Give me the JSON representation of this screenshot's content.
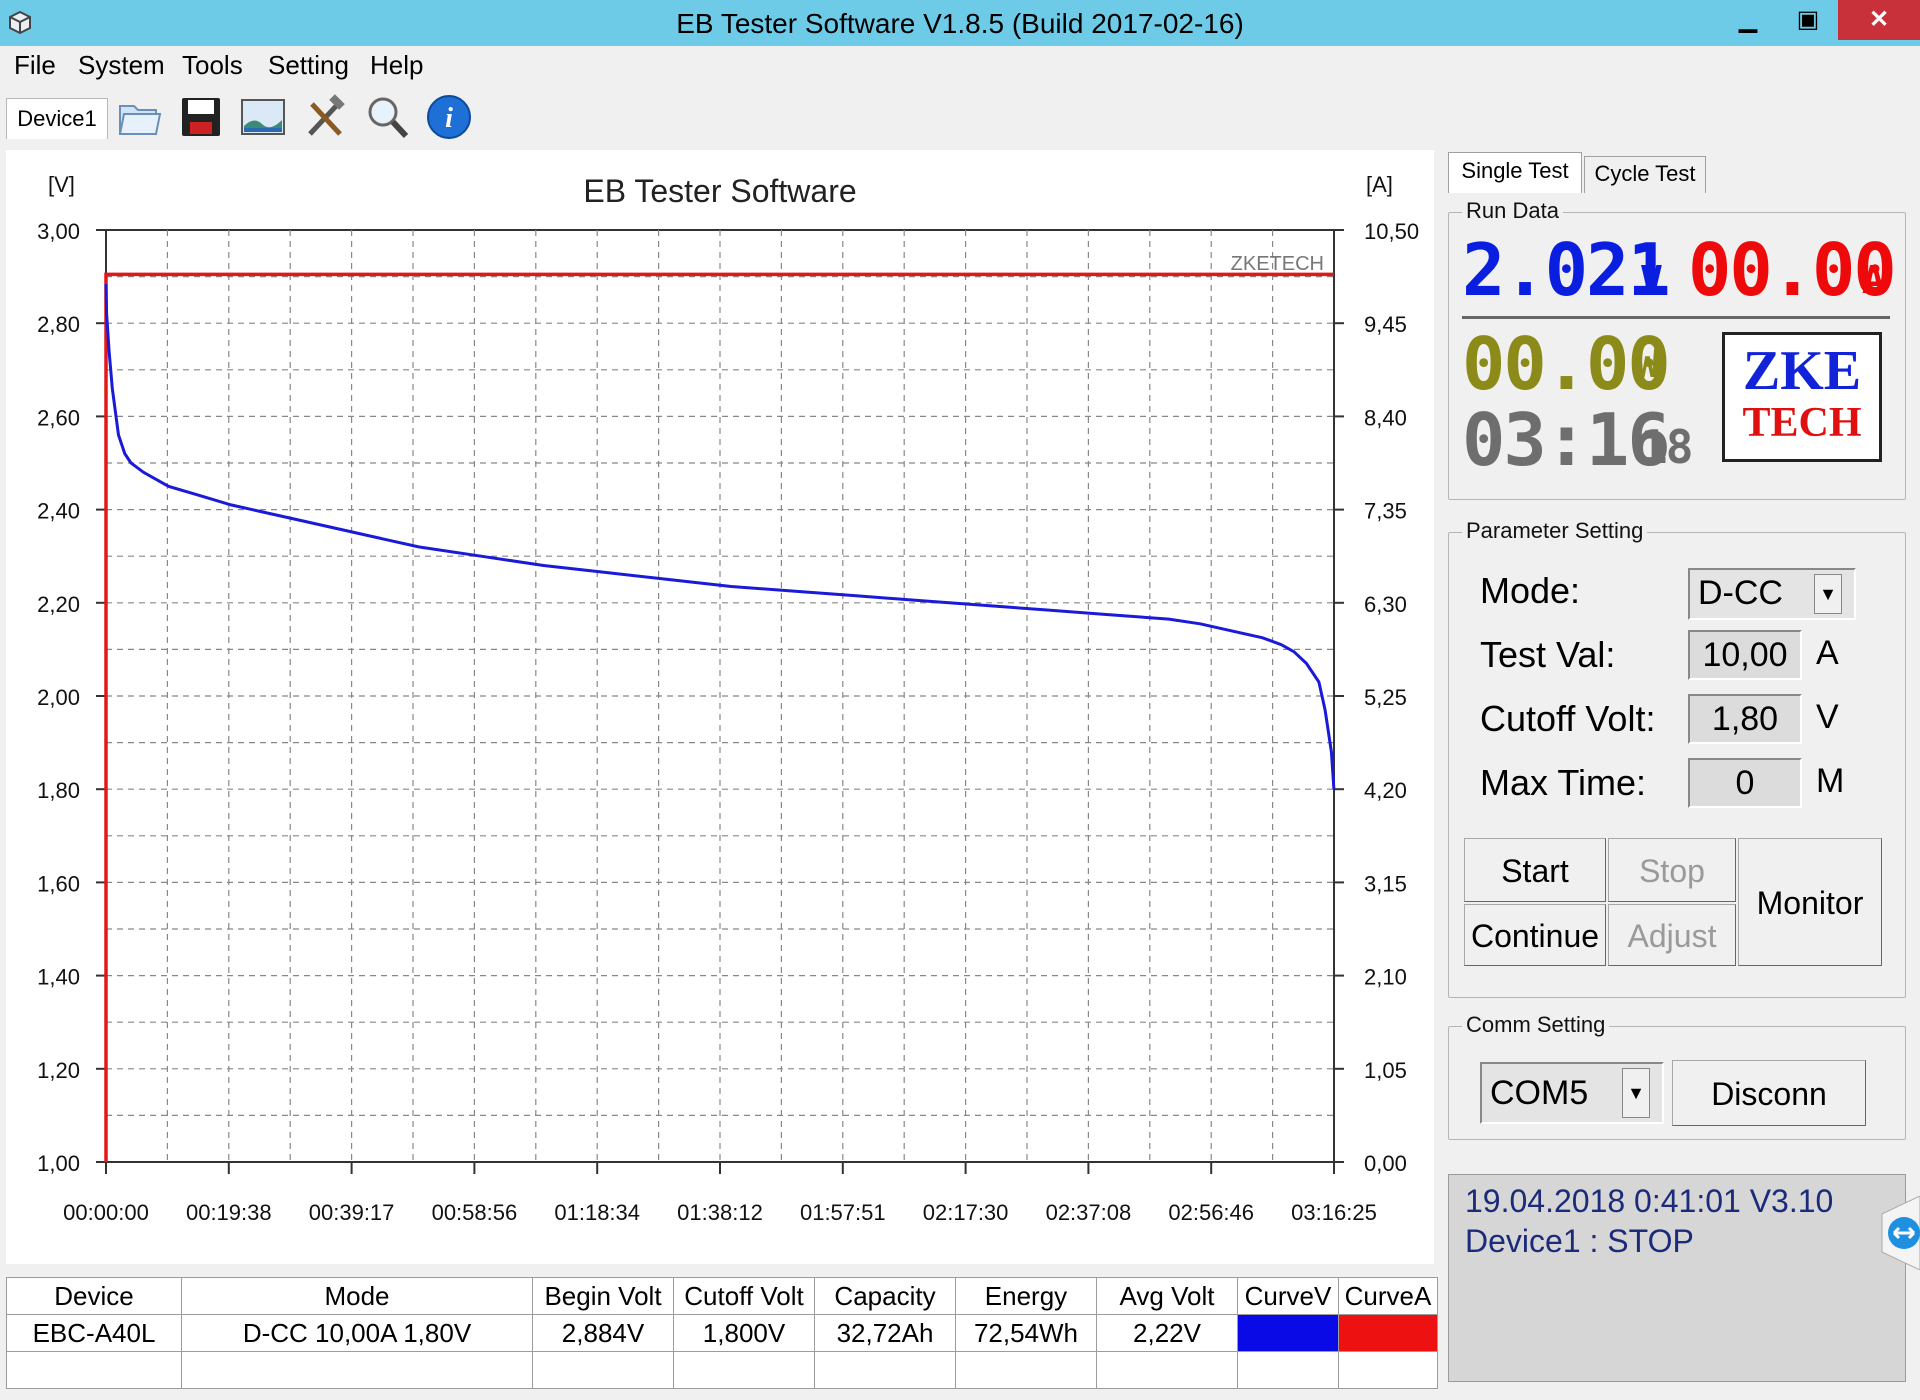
{
  "window": {
    "title": "EB Tester Software V1.8.5 (Build 2017-02-16)",
    "minimize": "▁",
    "maximize": "▣",
    "close": "✕"
  },
  "menu": [
    "File",
    "System",
    "Tools",
    "Setting",
    "Help"
  ],
  "toolbar": {
    "device_tab": "Device1",
    "icons": [
      "folder-icon",
      "save-icon",
      "image-icon",
      "tools-icon",
      "search-icon",
      "info-icon"
    ]
  },
  "chart_data": {
    "type": "line",
    "title": "EB Tester Software",
    "watermark": "ZKETECH",
    "y_left_unit": "[V]",
    "y_right_unit": "[A]",
    "y_left_ticks": [
      "3,00",
      "2,80",
      "2,60",
      "2,40",
      "2,20",
      "2,00",
      "1,80",
      "1,60",
      "1,40",
      "1,20",
      "1,00"
    ],
    "y_right_ticks": [
      "10,50",
      "9,45",
      "8,40",
      "7,35",
      "6,30",
      "5,25",
      "4,20",
      "3,15",
      "2,10",
      "1,05",
      "0,00"
    ],
    "x_ticks": [
      "00:00:00",
      "00:19:38",
      "00:39:17",
      "00:58:56",
      "01:18:34",
      "01:38:12",
      "01:57:51",
      "02:17:30",
      "02:37:08",
      "02:56:46",
      "03:16:25"
    ],
    "y_left_range": [
      1.0,
      3.0
    ],
    "y_right_range": [
      0.0,
      10.5
    ],
    "x_range_min": [
      0,
      196.42
    ],
    "grid": true,
    "series": [
      {
        "name": "CurveV",
        "color": "#1a1ad8",
        "x_min": [
          0,
          0.1,
          0.5,
          1,
          2,
          3,
          4,
          6,
          10,
          15,
          20,
          30,
          40,
          50,
          60,
          70,
          80,
          90,
          100,
          110,
          120,
          130,
          140,
          150,
          160,
          170,
          175,
          180,
          185,
          188,
          190,
          192,
          194,
          195,
          196,
          196.4
        ],
        "volts": [
          2.884,
          2.82,
          2.74,
          2.66,
          2.56,
          2.52,
          2.5,
          2.48,
          2.45,
          2.43,
          2.41,
          2.38,
          2.35,
          2.32,
          2.3,
          2.28,
          2.265,
          2.25,
          2.235,
          2.225,
          2.215,
          2.205,
          2.195,
          2.185,
          2.175,
          2.165,
          2.155,
          2.14,
          2.125,
          2.11,
          2.095,
          2.07,
          2.03,
          1.97,
          1.88,
          1.8
        ]
      },
      {
        "name": "CurveA",
        "color": "#e01818",
        "x_min": [
          0,
          0,
          196.4
        ],
        "amps": [
          0.0,
          10.0,
          10.0
        ]
      }
    ]
  },
  "right_panel": {
    "tabs": [
      "Single Test",
      "Cycle Test"
    ],
    "run_data_label": "Run Data",
    "voltage": "2.021",
    "voltage_unit": "V",
    "current": "00.00",
    "current_unit": "A",
    "power": "00.00",
    "power_unit": "W",
    "time_hm": "03:16",
    "time_s": "18",
    "logo_line1": "ZKE",
    "logo_line2": "TECH",
    "param_label": "Parameter Setting",
    "mode_label": "Mode:",
    "mode_value": "D-CC",
    "testval_label": "Test Val:",
    "testval_value": "10,00",
    "testval_unit": "A",
    "cutoff_label": "Cutoff Volt:",
    "cutoff_value": "1,80",
    "cutoff_unit": "V",
    "maxtime_label": "Max Time:",
    "maxtime_value": "0",
    "maxtime_unit": "M",
    "btn_start": "Start",
    "btn_stop": "Stop",
    "btn_continue": "Continue",
    "btn_adjust": "Adjust",
    "btn_monitor": "Monitor",
    "comm_label": "Comm Setting",
    "comm_port": "COM5",
    "btn_disconn": "Disconn"
  },
  "status": {
    "line1": "19.04.2018 0:41:01   V3.10",
    "line2": "Device1 : STOP"
  },
  "table": {
    "headers": [
      "Device",
      "Mode",
      "Begin Volt",
      "Cutoff Volt",
      "Capacity",
      "Energy",
      "Avg Volt",
      "CurveV",
      "CurveA"
    ],
    "row": [
      "EBC-A40L",
      "D-CC  10,00A  1,80V",
      "2,884V",
      "1,800V",
      "32,72Ah",
      "72,54Wh",
      "2,22V"
    ],
    "curve_colors": [
      "#0a0ae6",
      "#ee1111"
    ]
  }
}
